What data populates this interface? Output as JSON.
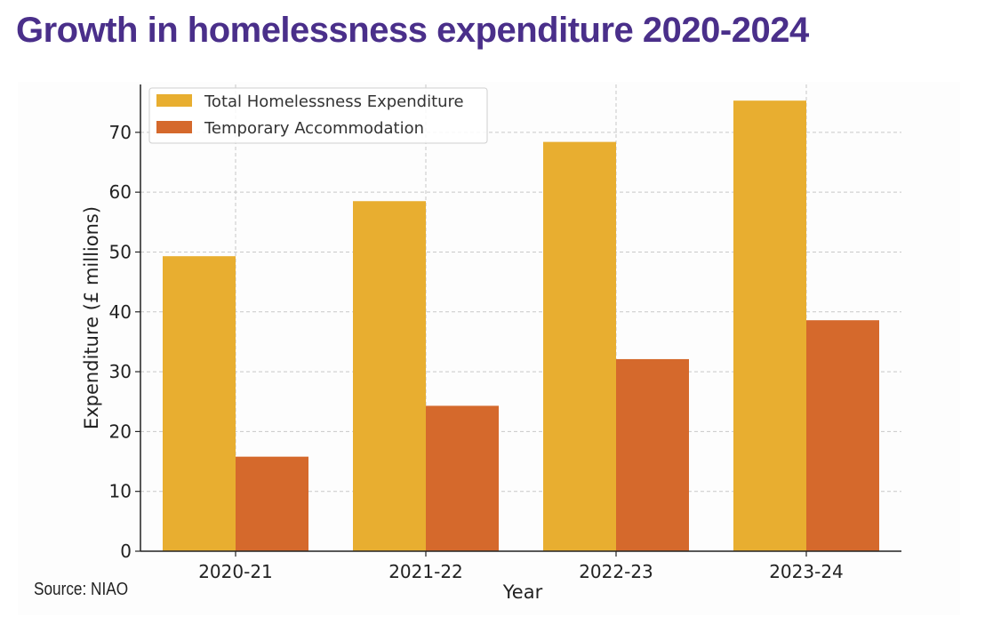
{
  "title": "Growth in homelessness expenditure 2020-2024",
  "source": "Source: NIAO",
  "chart_data": {
    "type": "bar",
    "title": "Growth in homelessness expenditure 2020-2024",
    "xlabel": "Year",
    "ylabel": "Expenditure (£ millions)",
    "categories": [
      "2020-21",
      "2021-22",
      "2022-23",
      "2023-24"
    ],
    "series": [
      {
        "name": "Total Homelessness Expenditure",
        "values": [
          49.3,
          58.5,
          68.4,
          75.3
        ],
        "color": "#e8ae30"
      },
      {
        "name": "Temporary Accommodation",
        "values": [
          15.8,
          24.3,
          32.1,
          38.6
        ],
        "color": "#d5692c"
      }
    ],
    "ylim": [
      0,
      78
    ],
    "yticks": [
      0,
      10,
      20,
      30,
      40,
      50,
      60,
      70
    ],
    "grid": true,
    "legend_position": "top-left"
  }
}
